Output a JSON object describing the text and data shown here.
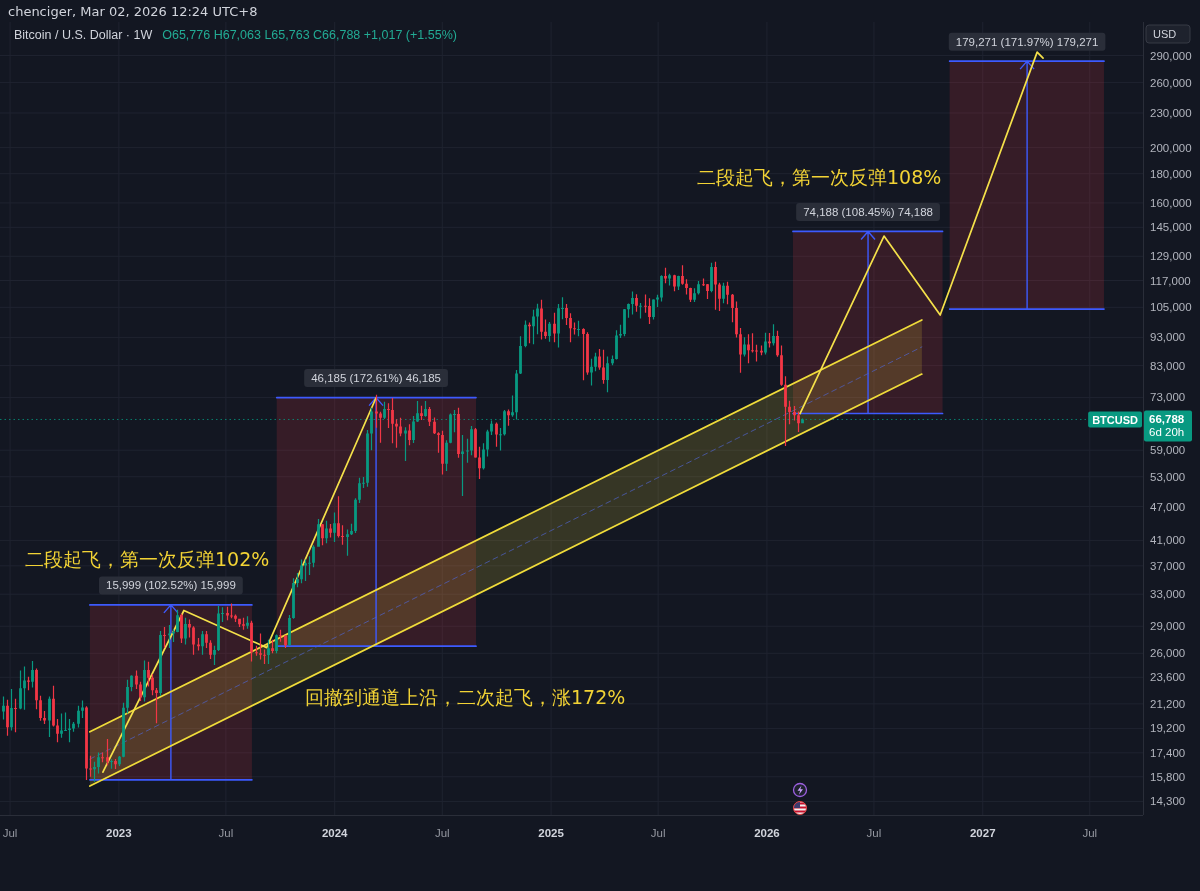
{
  "chart_data": {
    "type": "candlestick",
    "title": "Bitcoin / U.S. Dollar · 1W",
    "subtitle": "O65,776 H67,063 L65,763 C66,788 +1,017 (+1.55%)",
    "ylabel": "USD",
    "log": "y",
    "grid": true,
    "xlim": [
      "2022-06-14",
      "2027-09-29"
    ],
    "xticks": [
      {
        "value": "2022-07-01",
        "label": "Jul"
      },
      {
        "value": "2023-01-01",
        "label": "2023"
      },
      {
        "value": "2023-07-01",
        "label": "Jul"
      },
      {
        "value": "2024-01-01",
        "label": "2024"
      },
      {
        "value": "2024-07-01",
        "label": "Jul"
      },
      {
        "value": "2025-01-01",
        "label": "2025"
      },
      {
        "value": "2025-07-01",
        "label": "Jul"
      },
      {
        "value": "2026-01-01",
        "label": "2026"
      },
      {
        "value": "2026-07-01",
        "label": "Jul"
      },
      {
        "value": "2027-01-01",
        "label": "2027"
      },
      {
        "value": "2027-07-01",
        "label": "Jul"
      }
    ],
    "ylim": [
      13540,
      332000
    ],
    "yticks": [
      {
        "value": 290000,
        "label": "290,000"
      },
      {
        "value": 260000,
        "label": "260,000"
      },
      {
        "value": 230000,
        "label": "230,000"
      },
      {
        "value": 200000,
        "label": "200,000"
      },
      {
        "value": 180000,
        "label": "180,000"
      },
      {
        "value": 160000,
        "label": "160,000"
      },
      {
        "value": 145000,
        "label": "145,000"
      },
      {
        "value": 129000,
        "label": "129,000"
      },
      {
        "value": 117000,
        "label": "117,000"
      },
      {
        "value": 105000,
        "label": "105,000"
      },
      {
        "value": 93000,
        "label": "93,000"
      },
      {
        "value": 83000,
        "label": "83,000"
      },
      {
        "value": 73000,
        "label": "73,000"
      },
      {
        "value": 59000,
        "label": "59,000"
      },
      {
        "value": 53000,
        "label": "53,000"
      },
      {
        "value": 47000,
        "label": "47,000"
      },
      {
        "value": 41000,
        "label": "41,000"
      },
      {
        "value": 37000,
        "label": "37,000"
      },
      {
        "value": 33000,
        "label": "33,000"
      },
      {
        "value": 29000,
        "label": "29,000"
      },
      {
        "value": 26000,
        "label": "26,000"
      },
      {
        "value": 23600,
        "label": "23,600"
      },
      {
        "value": 21200,
        "label": "21,200"
      },
      {
        "value": 19200,
        "label": "19,200"
      },
      {
        "value": 17400,
        "label": "17,400"
      },
      {
        "value": 15800,
        "label": "15,800"
      },
      {
        "value": 14300,
        "label": "14,300"
      }
    ],
    "x": [
      "2022-06-20",
      "2022-06-27",
      "2022-07-04",
      "2022-07-11",
      "2022-07-18",
      "2022-07-25",
      "2022-08-01",
      "2022-08-08",
      "2022-08-15",
      "2022-08-22",
      "2022-08-29",
      "2022-09-05",
      "2022-09-12",
      "2022-09-19",
      "2022-09-26",
      "2022-10-03",
      "2022-10-10",
      "2022-10-17",
      "2022-10-24",
      "2022-10-31",
      "2022-11-07",
      "2022-11-14",
      "2022-11-21",
      "2022-11-28",
      "2022-12-05",
      "2022-12-12",
      "2022-12-19",
      "2022-12-26",
      "2023-01-02",
      "2023-01-09",
      "2023-01-16",
      "2023-01-23",
      "2023-01-30",
      "2023-02-06",
      "2023-02-13",
      "2023-02-20",
      "2023-02-27",
      "2023-03-06",
      "2023-03-13",
      "2023-03-20",
      "2023-03-27",
      "2023-04-03",
      "2023-04-10",
      "2023-04-17",
      "2023-04-24",
      "2023-05-01",
      "2023-05-08",
      "2023-05-15",
      "2023-05-22",
      "2023-05-29",
      "2023-06-05",
      "2023-06-12",
      "2023-06-19",
      "2023-06-26",
      "2023-07-03",
      "2023-07-10",
      "2023-07-17",
      "2023-07-24",
      "2023-07-31",
      "2023-08-07",
      "2023-08-14",
      "2023-08-21",
      "2023-08-28",
      "2023-09-04",
      "2023-09-11",
      "2023-09-18",
      "2023-09-25",
      "2023-10-02",
      "2023-10-09",
      "2023-10-16",
      "2023-10-23",
      "2023-10-30",
      "2023-11-06",
      "2023-11-13",
      "2023-11-20",
      "2023-11-27",
      "2023-12-04",
      "2023-12-11",
      "2023-12-18",
      "2023-12-25",
      "2024-01-01",
      "2024-01-08",
      "2024-01-15",
      "2024-01-22",
      "2024-01-29",
      "2024-02-05",
      "2024-02-12",
      "2024-02-19",
      "2024-02-26",
      "2024-03-04",
      "2024-03-11",
      "2024-03-18",
      "2024-03-25",
      "2024-04-01",
      "2024-04-08",
      "2024-04-15",
      "2024-04-22",
      "2024-04-29",
      "2024-05-06",
      "2024-05-13",
      "2024-05-20",
      "2024-05-27",
      "2024-06-03",
      "2024-06-10",
      "2024-06-17",
      "2024-06-24",
      "2024-07-01",
      "2024-07-08",
      "2024-07-15",
      "2024-07-22",
      "2024-07-29",
      "2024-08-05",
      "2024-08-12",
      "2024-08-19",
      "2024-08-26",
      "2024-09-02",
      "2024-09-09",
      "2024-09-16",
      "2024-09-23",
      "2024-09-30",
      "2024-10-07",
      "2024-10-14",
      "2024-10-21",
      "2024-10-28",
      "2024-11-04",
      "2024-11-11",
      "2024-11-18",
      "2024-11-25",
      "2024-12-02",
      "2024-12-09",
      "2024-12-16",
      "2024-12-23",
      "2024-12-30",
      "2025-01-06",
      "2025-01-13",
      "2025-01-20",
      "2025-01-27",
      "2025-02-03",
      "2025-02-10",
      "2025-02-17",
      "2025-02-24",
      "2025-03-03",
      "2025-03-10",
      "2025-03-17",
      "2025-03-24",
      "2025-03-31",
      "2025-04-07",
      "2025-04-14",
      "2025-04-21",
      "2025-04-28",
      "2025-05-05",
      "2025-05-12",
      "2025-05-19",
      "2025-05-26",
      "2025-06-02",
      "2025-06-09",
      "2025-06-16",
      "2025-06-23",
      "2025-06-30",
      "2025-07-07",
      "2025-07-14",
      "2025-07-21",
      "2025-07-28",
      "2025-08-04",
      "2025-08-11",
      "2025-08-18",
      "2025-08-25",
      "2025-09-01",
      "2025-09-08",
      "2025-09-15",
      "2025-09-22",
      "2025-09-29",
      "2025-10-06",
      "2025-10-13",
      "2025-10-20",
      "2025-10-27",
      "2025-11-03",
      "2025-11-10",
      "2025-11-17",
      "2025-11-24",
      "2025-12-01",
      "2025-12-08",
      "2025-12-15",
      "2025-12-22",
      "2025-12-29",
      "2026-01-05",
      "2026-01-12",
      "2026-01-19",
      "2026-01-26",
      "2026-02-02",
      "2026-02-09",
      "2026-02-16",
      "2026-02-23",
      "2026-03-02"
    ],
    "ohlc": [
      [
        20550,
        21850,
        19900,
        21030
      ],
      [
        21030,
        21550,
        18650,
        19300
      ],
      [
        19300,
        22500,
        19050,
        20850
      ],
      [
        20850,
        21650,
        18900,
        20800
      ],
      [
        20800,
        24250,
        20750,
        22580
      ],
      [
        22580,
        24650,
        20700,
        23300
      ],
      [
        23300,
        23650,
        22400,
        23180
      ],
      [
        23180,
        25200,
        22650,
        24300
      ],
      [
        24300,
        24450,
        20750,
        21520
      ],
      [
        21520,
        21900,
        19800,
        20030
      ],
      [
        20030,
        20600,
        19550,
        19830
      ],
      [
        19830,
        21850,
        18550,
        21650
      ],
      [
        21650,
        22800,
        19350,
        19420
      ],
      [
        19420,
        19950,
        18150,
        18800
      ],
      [
        18800,
        20400,
        18500,
        19050
      ],
      [
        19050,
        20480,
        19000,
        19070
      ],
      [
        19070,
        19950,
        18150,
        19200
      ],
      [
        19200,
        19700,
        18950,
        19570
      ],
      [
        19570,
        21050,
        19270,
        20630
      ],
      [
        20630,
        21480,
        20030,
        20900
      ],
      [
        20900,
        21000,
        15600,
        16330
      ],
      [
        16330,
        17190,
        15800,
        16280
      ],
      [
        16280,
        16790,
        15480,
        16430
      ],
      [
        16430,
        17420,
        16000,
        17100
      ],
      [
        17100,
        17420,
        16750,
        17090
      ],
      [
        17090,
        18400,
        16550,
        16780
      ],
      [
        16780,
        16960,
        16320,
        16830
      ],
      [
        16830,
        16970,
        16300,
        16620
      ],
      [
        16620,
        17180,
        16500,
        17130
      ],
      [
        17130,
        21300,
        17100,
        20870
      ],
      [
        20870,
        23370,
        20400,
        22700
      ],
      [
        22700,
        23800,
        22300,
        23750
      ],
      [
        23750,
        24250,
        22500,
        22930
      ],
      [
        22930,
        23180,
        21450,
        21780
      ],
      [
        21780,
        25250,
        21400,
        24300
      ],
      [
        24300,
        25130,
        22750,
        23550
      ],
      [
        23550,
        23900,
        21950,
        22400
      ],
      [
        22400,
        22600,
        19600,
        22150
      ],
      [
        22150,
        28450,
        21900,
        27990
      ],
      [
        27990,
        28900,
        26600,
        27950
      ],
      [
        27950,
        29150,
        26550,
        28170
      ],
      [
        28170,
        28650,
        27200,
        28320
      ],
      [
        28320,
        31000,
        28300,
        30300
      ],
      [
        30300,
        30500,
        27100,
        27600
      ],
      [
        27600,
        30000,
        26950,
        29250
      ],
      [
        29250,
        29800,
        27700,
        28850
      ],
      [
        28850,
        29000,
        25850,
        26930
      ],
      [
        26930,
        27650,
        26300,
        26750
      ],
      [
        26750,
        28450,
        25850,
        28080
      ],
      [
        28080,
        28450,
        26550,
        27120
      ],
      [
        27120,
        27400,
        25400,
        25850
      ],
      [
        25850,
        26800,
        24800,
        26340
      ],
      [
        26340,
        31450,
        26250,
        30530
      ],
      [
        30530,
        31300,
        29500,
        30600
      ],
      [
        30600,
        31380,
        29700,
        30290
      ],
      [
        30290,
        31800,
        29950,
        30240
      ],
      [
        30240,
        30400,
        29500,
        29900
      ],
      [
        29900,
        29900,
        28900,
        29230
      ],
      [
        29230,
        30000,
        28600,
        29050
      ],
      [
        29050,
        30200,
        28700,
        29400
      ],
      [
        29400,
        29650,
        25150,
        26100
      ],
      [
        26100,
        26800,
        25750,
        26000
      ],
      [
        26000,
        28150,
        25350,
        25840
      ],
      [
        25840,
        26400,
        24900,
        25830
      ],
      [
        25830,
        27450,
        24900,
        26530
      ],
      [
        26530,
        27450,
        26000,
        26250
      ],
      [
        26250,
        28050,
        26000,
        27950
      ],
      [
        27950,
        28600,
        27250,
        27900
      ],
      [
        27900,
        27950,
        26550,
        26850
      ],
      [
        26850,
        30350,
        26800,
        29990
      ],
      [
        29990,
        35200,
        29900,
        34530
      ],
      [
        34530,
        35950,
        33950,
        35050
      ],
      [
        35050,
        37950,
        34500,
        37050
      ],
      [
        37050,
        37950,
        34800,
        37400
      ],
      [
        37400,
        38450,
        35650,
        37450
      ],
      [
        37450,
        40200,
        36800,
        39970
      ],
      [
        39970,
        44700,
        39950,
        43780
      ],
      [
        43780,
        43800,
        40200,
        41370
      ],
      [
        41370,
        44400,
        40550,
        43000
      ],
      [
        43000,
        43800,
        41500,
        42280
      ],
      [
        42280,
        45900,
        40750,
        43950
      ],
      [
        43950,
        49000,
        41500,
        41730
      ],
      [
        41730,
        43600,
        40300,
        41580
      ],
      [
        41580,
        42850,
        38550,
        42030
      ],
      [
        42030,
        43850,
        41900,
        42580
      ],
      [
        42580,
        48600,
        42250,
        48300
      ],
      [
        48300,
        52800,
        47700,
        51650
      ],
      [
        51650,
        52950,
        50650,
        51730
      ],
      [
        51730,
        64000,
        50900,
        63100
      ],
      [
        63100,
        70000,
        59000,
        68950
      ],
      [
        68950,
        73800,
        64600,
        68380
      ],
      [
        68380,
        68900,
        60800,
        67230
      ],
      [
        67230,
        71750,
        66900,
        69650
      ],
      [
        69650,
        71300,
        64500,
        69380
      ],
      [
        69380,
        72800,
        60700,
        65650
      ],
      [
        65650,
        66850,
        59600,
        64950
      ],
      [
        64950,
        67250,
        62400,
        63120
      ],
      [
        63120,
        64750,
        56500,
        63900
      ],
      [
        63900,
        65500,
        60200,
        61500
      ],
      [
        61500,
        67700,
        60750,
        66250
      ],
      [
        66250,
        71950,
        66100,
        68500
      ],
      [
        68500,
        70600,
        66650,
        67750
      ],
      [
        67750,
        71950,
        67500,
        69650
      ],
      [
        69650,
        70200,
        65050,
        66200
      ],
      [
        66200,
        67300,
        63000,
        63200
      ],
      [
        63200,
        63400,
        58400,
        62700
      ],
      [
        62700,
        63800,
        53500,
        55850
      ],
      [
        55850,
        61400,
        54250,
        60800
      ],
      [
        60800,
        68400,
        60700,
        68150
      ],
      [
        68150,
        69400,
        63450,
        68250
      ],
      [
        68250,
        70000,
        57200,
        58100
      ],
      [
        58100,
        62700,
        49050,
        58700
      ],
      [
        58700,
        61800,
        56100,
        58900
      ],
      [
        58900,
        65050,
        57800,
        64200
      ],
      [
        64200,
        64500,
        57200,
        57300
      ],
      [
        57300,
        59800,
        52550,
        54850
      ],
      [
        54850,
        60650,
        54600,
        59150
      ],
      [
        59150,
        64100,
        57500,
        63600
      ],
      [
        63600,
        66500,
        62700,
        65650
      ],
      [
        65650,
        66000,
        59800,
        62850
      ],
      [
        62850,
        64500,
        58900,
        62900
      ],
      [
        62900,
        69400,
        62600,
        69050
      ],
      [
        69050,
        69500,
        65100,
        67950
      ],
      [
        67950,
        73600,
        67500,
        68750
      ],
      [
        68750,
        81500,
        66800,
        80400
      ],
      [
        80400,
        93450,
        80200,
        89800
      ],
      [
        89800,
        99550,
        89400,
        97900
      ],
      [
        97900,
        98800,
        90800,
        97250
      ],
      [
        97250,
        104000,
        90500,
        101150
      ],
      [
        101150,
        106500,
        94200,
        104450
      ],
      [
        104450,
        108300,
        92200,
        95100
      ],
      [
        95100,
        99950,
        92500,
        93550
      ],
      [
        93550,
        98950,
        91400,
        98300
      ],
      [
        98300,
        102700,
        91200,
        94500
      ],
      [
        94500,
        106400,
        89250,
        104600
      ],
      [
        104600,
        109350,
        100100,
        104750
      ],
      [
        104750,
        106450,
        97800,
        100600
      ],
      [
        100600,
        102500,
        91200,
        96500
      ],
      [
        96500,
        98800,
        94100,
        96150
      ],
      [
        96150,
        99500,
        93400,
        96250
      ],
      [
        96250,
        96500,
        78200,
        94250
      ],
      [
        94250,
        95000,
        80000,
        80700
      ],
      [
        80700,
        85300,
        76600,
        82600
      ],
      [
        82600,
        87450,
        81150,
        86100
      ],
      [
        86100,
        88750,
        81650,
        82400
      ],
      [
        82400,
        88500,
        77150,
        78350
      ],
      [
        78350,
        86100,
        74500,
        83750
      ],
      [
        83750,
        86450,
        83100,
        85200
      ],
      [
        85200,
        95750,
        85100,
        93750
      ],
      [
        93750,
        97900,
        92800,
        94300
      ],
      [
        94300,
        104300,
        93400,
        104150
      ],
      [
        104150,
        106650,
        100700,
        106450
      ],
      [
        106450,
        111900,
        102000,
        109000
      ],
      [
        109000,
        110700,
        103100,
        105650
      ],
      [
        105650,
        106800,
        100400,
        105700
      ],
      [
        105700,
        110600,
        102700,
        105550
      ],
      [
        105550,
        108950,
        98200,
        100950
      ],
      [
        100950,
        108500,
        100000,
        108350
      ],
      [
        108350,
        110500,
        105100,
        109200
      ],
      [
        109200,
        119500,
        107500,
        119100
      ],
      [
        119100,
        123200,
        115700,
        117950
      ],
      [
        117950,
        120250,
        114700,
        119450
      ],
      [
        119450,
        119800,
        112000,
        114200
      ],
      [
        114200,
        119300,
        112650,
        119200
      ],
      [
        119200,
        124450,
        115000,
        115500
      ],
      [
        115500,
        117600,
        110600,
        113500
      ],
      [
        113500,
        113600,
        107300,
        108250
      ],
      [
        108250,
        113400,
        107300,
        111150
      ],
      [
        111150,
        116800,
        110600,
        115300
      ],
      [
        115300,
        117900,
        114400,
        115250
      ],
      [
        115250,
        115400,
        108600,
        112200
      ],
      [
        112200,
        125700,
        111600,
        123500
      ],
      [
        123500,
        126200,
        104000,
        115100
      ],
      [
        115100,
        116000,
        103500,
        108650
      ],
      [
        108650,
        116000,
        106700,
        114500
      ],
      [
        114500,
        116400,
        106300,
        110500
      ],
      [
        110500,
        110800,
        98900,
        104700
      ],
      [
        104700,
        107500,
        93000,
        94200
      ],
      [
        94200,
        96600,
        80600,
        86800
      ],
      [
        86800,
        93100,
        86100,
        90400
      ],
      [
        90400,
        94200,
        83800,
        88300
      ],
      [
        88300,
        94600,
        87500,
        88200
      ],
      [
        88200,
        90300,
        84400,
        88100
      ],
      [
        88100,
        90000,
        86500,
        87500
      ],
      [
        87500,
        94800,
        86800,
        91500
      ],
      [
        91500,
        94700,
        89300,
        90800
      ],
      [
        90800,
        98100,
        90000,
        93500
      ],
      [
        93500,
        95500,
        86000,
        86500
      ],
      [
        86500,
        90000,
        76500,
        76800
      ],
      [
        76800,
        79500,
        60000,
        70300
      ],
      [
        70300,
        72000,
        65500,
        68800
      ],
      [
        68800,
        70500,
        66500,
        67900
      ],
      [
        67900,
        69000,
        63500,
        65776
      ],
      [
        65776,
        67063,
        65763,
        66788
      ]
    ],
    "series": [
      {
        "type": "line",
        "color": "#f23645",
        "x": [
          "2022-11-13",
          "2023-08-14"
        ],
        "values": [
          null,
          null
        ],
        "lower": [
          15606,
          15606
        ],
        "upper": [
          31605,
          31605
        ]
      },
      {
        "type": "line",
        "color": "#3d5afe",
        "x": [
          "2022-11-13",
          "2023-08-14"
        ],
        "values": [
          31605,
          31605
        ]
      },
      {
        "type": "line",
        "color": "#3d5afe",
        "x": [
          "2022-11-13",
          "2023-08-14"
        ],
        "values": [
          15606,
          15606
        ]
      },
      {
        "type": "line",
        "color": "#f23645",
        "x": [
          "2023-09-25",
          "2024-08-27"
        ],
        "values": [
          null,
          null
        ],
        "lower": [
          26757,
          26757
        ],
        "upper": [
          72942,
          72942
        ]
      },
      {
        "type": "line",
        "color": "#3d5afe",
        "x": [
          "2023-09-25",
          "2024-08-27"
        ],
        "values": [
          72942,
          72942
        ]
      },
      {
        "type": "line",
        "color": "#3d5afe",
        "x": [
          "2023-09-25",
          "2024-08-27"
        ],
        "values": [
          26757,
          26757
        ]
      },
      {
        "type": "line",
        "color": "#f23645",
        "x": [
          "2026-02-14",
          "2026-10-25"
        ],
        "values": [
          null,
          null
        ],
        "lower": [
          68408,
          68408
        ],
        "upper": [
          142596,
          142596
        ]
      },
      {
        "type": "line",
        "color": "#3d5afe",
        "x": [
          "2026-02-14",
          "2026-10-25"
        ],
        "values": [
          142596,
          142596
        ]
      },
      {
        "type": "line",
        "color": "#3d5afe",
        "x": [
          "2026-02-14",
          "2026-10-25"
        ],
        "values": [
          68408,
          68408
        ]
      },
      {
        "type": "line",
        "color": "#f23645",
        "x": [
          "2026-11-06",
          "2027-07-25"
        ],
        "values": [
          null,
          null
        ],
        "lower": [
          104245,
          104245
        ],
        "upper": [
          283516,
          283516
        ]
      },
      {
        "type": "line",
        "color": "#3d5afe",
        "x": [
          "2026-11-06",
          "2027-07-25"
        ],
        "values": [
          283516,
          283516
        ]
      },
      {
        "type": "line",
        "color": "#3d5afe",
        "x": [
          "2026-11-06",
          "2027-07-25"
        ],
        "values": [
          104245,
          104245
        ]
      },
      {
        "type": "line",
        "color": "#f0dc3a",
        "x": [
          "2022-11-13",
          "2026-09-20"
        ],
        "values": [
          null,
          null
        ],
        "lower": [
          15220,
          80200
        ],
        "upper": [
          18940,
          99800
        ]
      },
      {
        "type": "line",
        "color": "#f0dc3a",
        "x": [
          "2022-11-13",
          "2026-09-20"
        ],
        "values": [
          18940,
          99800
        ]
      },
      {
        "type": "line",
        "color": "#f0dc3a",
        "x": [
          "2022-11-13",
          "2026-09-20"
        ],
        "values": [
          15220,
          80200
        ]
      },
      {
        "type": "line",
        "color": "#4f63c9",
        "line_style": "dashed",
        "x": [
          "2022-11-13",
          "2026-09-20"
        ],
        "values": [
          16970,
          89500
        ]
      },
      {
        "type": "line",
        "color": "#f5e14a",
        "x": [
          "2022-12-05",
          "2023-04-21",
          "2023-09-08",
          "2024-03-11"
        ],
        "values": [
          16100,
          30900,
          26600,
          72900
        ]
      },
      {
        "type": "line",
        "color": "#f5e14a",
        "x": [
          "2026-02-26",
          "2026-07-18",
          "2026-10-21",
          "2027-04-03",
          "2027-04-13"
        ],
        "values": [
          68400,
          140000,
          101800,
          294000,
          287000
        ]
      }
    ],
    "ref_lines": [
      {
        "axis": "y",
        "value": 66788,
        "label": "BTCUSD",
        "color": "#089981",
        "line_style": "dotted"
      }
    ],
    "annotations": [
      "chenciger, Mar 02, 2026 12:24 UTC+8",
      "二段起飞，第一次反弹102%",
      "回撤到通道上沿，二次起飞，涨172%",
      "二段起飞，第一次反弹108%",
      "66,788",
      "6d 20h",
      {
        "text": "15,999 (102.52%) 15,999",
        "x": "2023-03-30",
        "y": 31605
      },
      {
        "text": "46,185 (172.61%) 46,185",
        "x": "2024-03-11",
        "y": 72942
      },
      {
        "text": "74,188 (108.45%) 74,188",
        "x": "2026-06-21",
        "y": 142596
      },
      {
        "text": "179,271 (171.97%) 179,271",
        "x": "2027-03-17",
        "y": 283516
      }
    ]
  }
}
